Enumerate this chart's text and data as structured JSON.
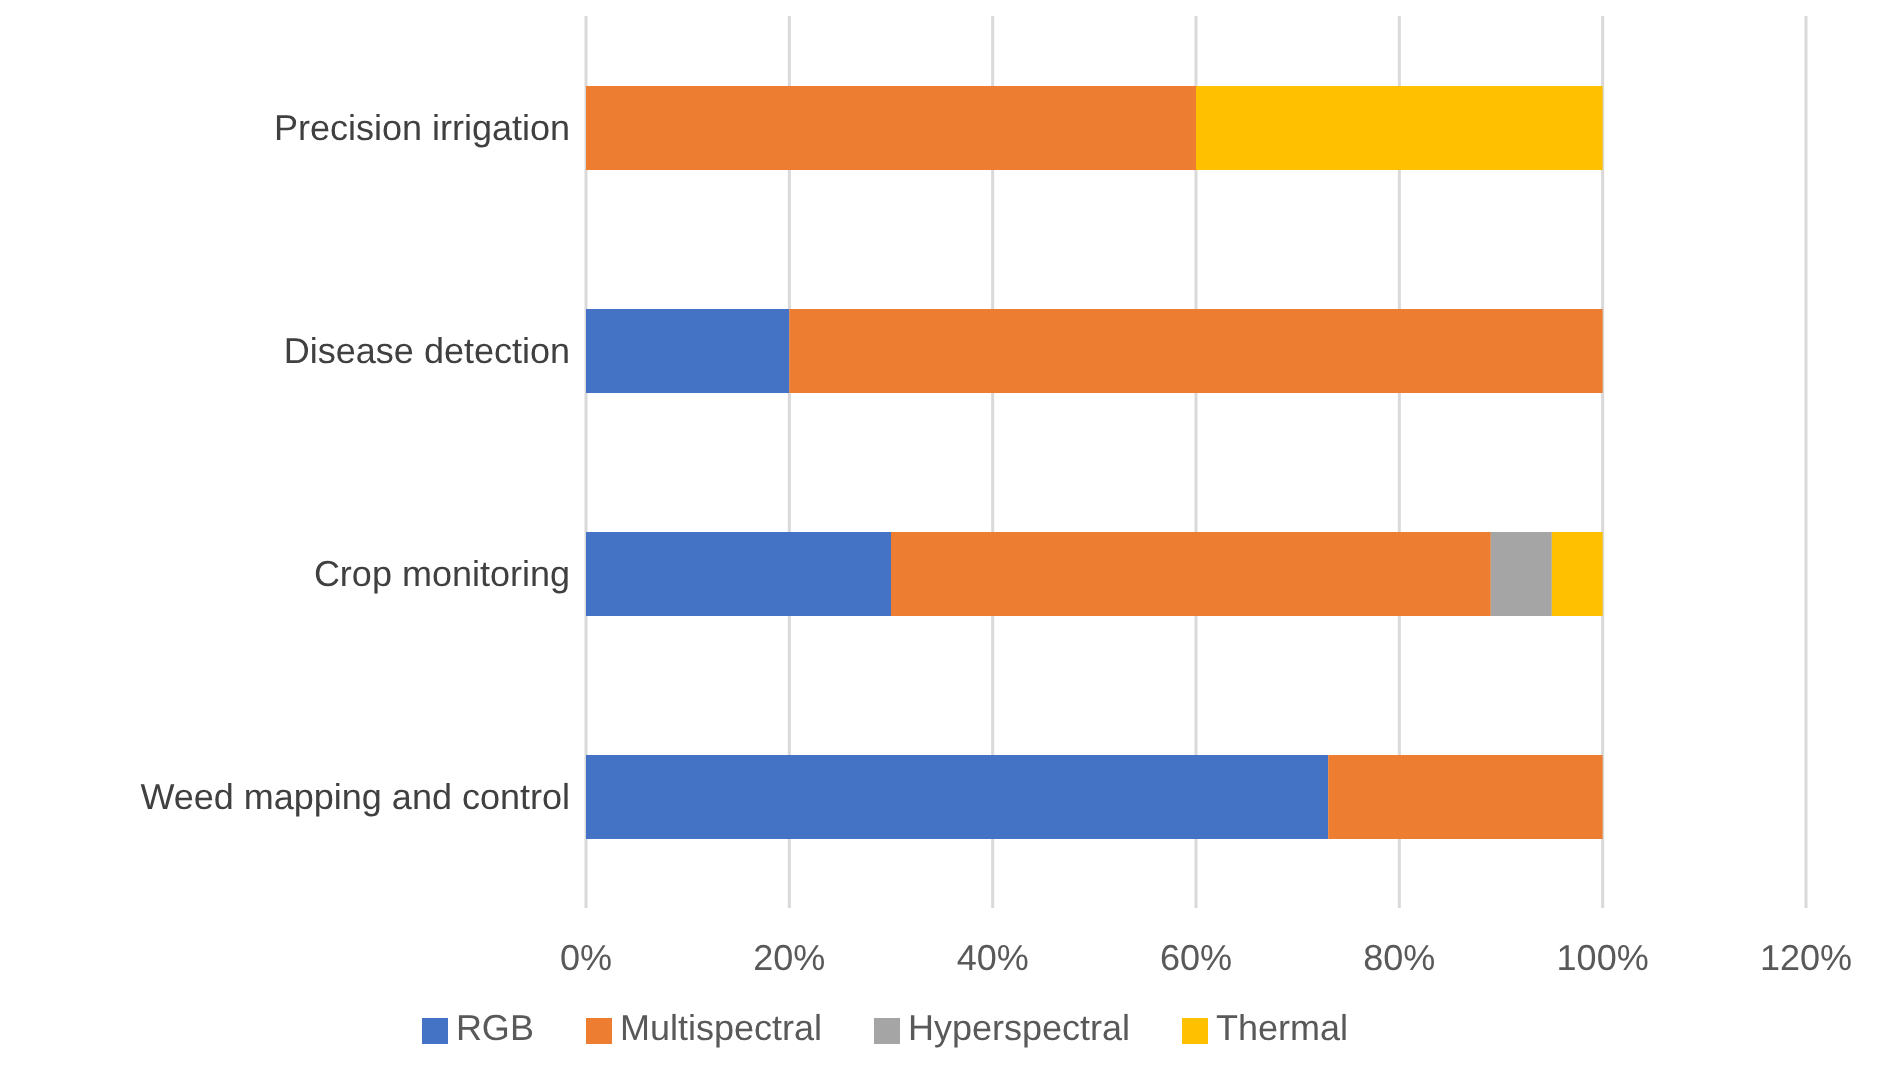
{
  "chart_data": {
    "type": "bar",
    "orientation": "horizontal",
    "stacked": true,
    "categories": [
      "Precision irrigation",
      "Disease detection",
      "Crop monitoring",
      "Weed mapping and control"
    ],
    "series": [
      {
        "name": "RGB",
        "color": "#4472c4",
        "values": [
          0,
          20,
          30,
          73
        ]
      },
      {
        "name": "Multispectral",
        "color": "#ed7d31",
        "values": [
          60,
          80,
          59,
          27
        ]
      },
      {
        "name": "Hyperspectral",
        "color": "#a5a5a5",
        "values": [
          0,
          0,
          6,
          0
        ]
      },
      {
        "name": "Thermal",
        "color": "#ffc000",
        "values": [
          40,
          0,
          5,
          0
        ]
      }
    ],
    "xlim": [
      0,
      120
    ],
    "xticks": [
      {
        "value": 0,
        "label": "0%"
      },
      {
        "value": 20,
        "label": "20%"
      },
      {
        "value": 40,
        "label": "40%"
      },
      {
        "value": 60,
        "label": "60%"
      },
      {
        "value": 80,
        "label": "80%"
      },
      {
        "value": 100,
        "label": "100%"
      },
      {
        "value": 120,
        "label": "120%"
      }
    ],
    "grid": "x",
    "legend": "bottom"
  }
}
